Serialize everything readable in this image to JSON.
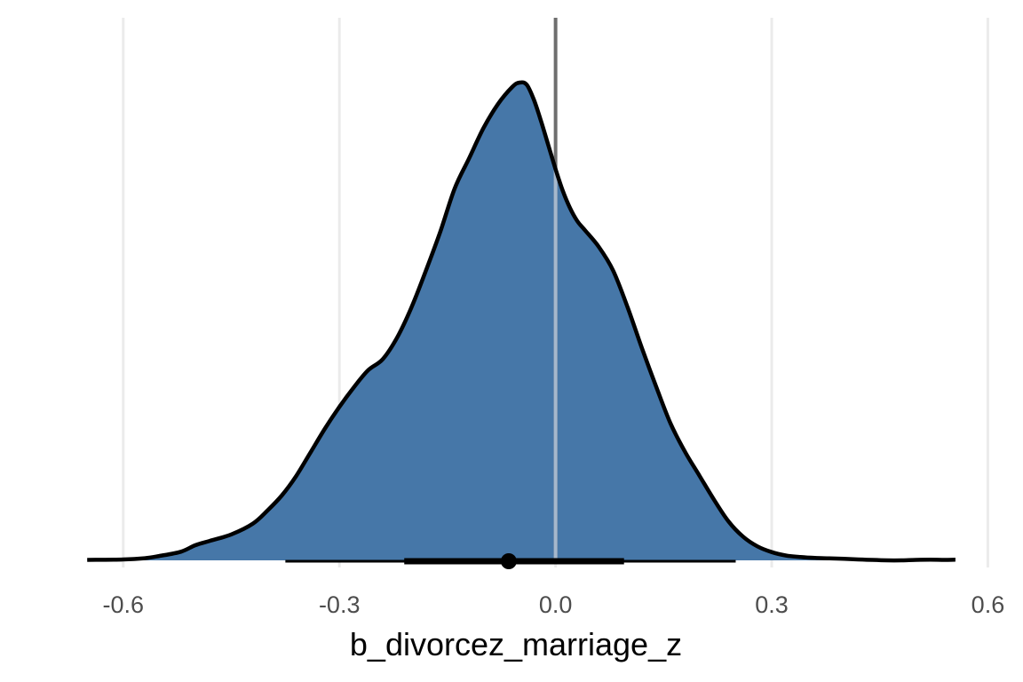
{
  "chart_data": {
    "type": "area",
    "subtype": "posterior-density-with-interval",
    "title": "",
    "xlabel": "b_divorcez_marriage_z",
    "ylabel": "",
    "xlim": [
      -0.67,
      0.56
    ],
    "xticks": [
      -0.6,
      -0.3,
      0.0,
      0.3,
      0.6
    ],
    "tick_labels": [
      "-0.6",
      "-0.3",
      "0.0",
      "0.3",
      "0.6"
    ],
    "grid": "vertical major gridlines",
    "reference_line": {
      "x": 0.0
    },
    "density": {
      "x": [
        -0.65,
        -0.6,
        -0.57,
        -0.55,
        -0.52,
        -0.5,
        -0.48,
        -0.45,
        -0.42,
        -0.4,
        -0.38,
        -0.36,
        -0.34,
        -0.32,
        -0.3,
        -0.28,
        -0.26,
        -0.24,
        -0.22,
        -0.2,
        -0.18,
        -0.16,
        -0.14,
        -0.12,
        -0.1,
        -0.08,
        -0.06,
        -0.05,
        -0.04,
        -0.03,
        -0.02,
        -0.01,
        0.0,
        0.01,
        0.02,
        0.03,
        0.04,
        0.06,
        0.08,
        0.1,
        0.12,
        0.14,
        0.16,
        0.18,
        0.2,
        0.22,
        0.24,
        0.26,
        0.28,
        0.3,
        0.32,
        0.34,
        0.36,
        0.38,
        0.4,
        0.42,
        0.44,
        0.46,
        0.48,
        0.5,
        0.52,
        0.54,
        0.555
      ],
      "y": [
        0.002,
        0.004,
        0.01,
        0.02,
        0.04,
        0.07,
        0.09,
        0.12,
        0.17,
        0.23,
        0.3,
        0.39,
        0.5,
        0.61,
        0.71,
        0.8,
        0.88,
        0.93,
        1.03,
        1.17,
        1.34,
        1.52,
        1.72,
        1.86,
        2.0,
        2.11,
        2.19,
        2.21,
        2.2,
        2.13,
        2.03,
        1.92,
        1.81,
        1.71,
        1.63,
        1.57,
        1.53,
        1.45,
        1.34,
        1.17,
        0.98,
        0.8,
        0.63,
        0.5,
        0.39,
        0.28,
        0.18,
        0.11,
        0.065,
        0.038,
        0.022,
        0.015,
        0.011,
        0.009,
        0.007,
        0.004,
        0.002,
        0.0,
        0.0,
        0.002,
        0.003,
        0.002,
        0.003
      ]
    },
    "point_estimate": -0.065,
    "interval_inner": [
      -0.21,
      0.095
    ],
    "interval_outer": [
      -0.375,
      0.25
    ],
    "colors": {
      "fill": "#4677a8",
      "outline": "#000000",
      "grid": "#ebebeb",
      "reference_line": "#6e6e6e",
      "reference_line_inside": "#a6b8cc",
      "interval": "#000000"
    }
  }
}
